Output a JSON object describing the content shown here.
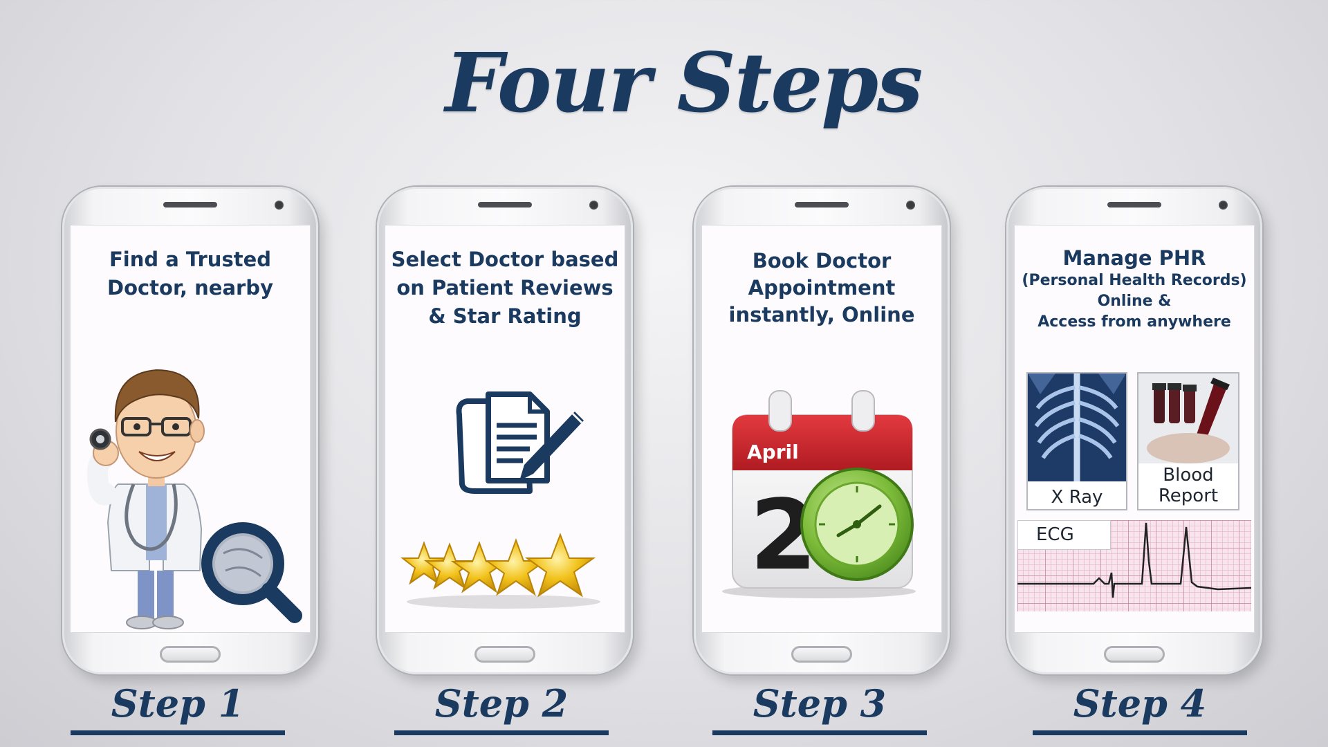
{
  "title": "Four Steps",
  "steps": [
    {
      "label": "Step 1",
      "screen_line1": "Find a Trusted",
      "screen_line2": "Doctor, nearby"
    },
    {
      "label": "Step 2",
      "screen_line1": "Select Doctor based",
      "screen_line2": "on Patient Reviews",
      "screen_line3": "& Star Rating"
    },
    {
      "label": "Step 3",
      "screen_line1": "Book Doctor",
      "screen_line2": "Appointment",
      "screen_line3": "instantly, Online",
      "calendar_month": "April",
      "calendar_day": "2"
    },
    {
      "label": "Step 4",
      "screen_line1": "Manage PHR",
      "screen_line2": "(Personal Health Records)",
      "screen_line3": "Online &",
      "screen_line4": "Access from anywhere",
      "tile_xray": "X Ray",
      "tile_blood_line1": "Blood",
      "tile_blood_line2": "Report",
      "tile_ecg": "ECG"
    }
  ],
  "colors": {
    "navy": "#1b3a60",
    "calendar_red": "#c32229",
    "clock_green": "#7dbb3a",
    "star_gold": "#f2c21b"
  },
  "icons": {
    "step1": "doctor-with-magnifier-icon",
    "step2": "document-pencil-icon",
    "step2_rating": "five-star-icon",
    "step3": "calendar-clock-icon",
    "step4": "health-records-icon"
  }
}
